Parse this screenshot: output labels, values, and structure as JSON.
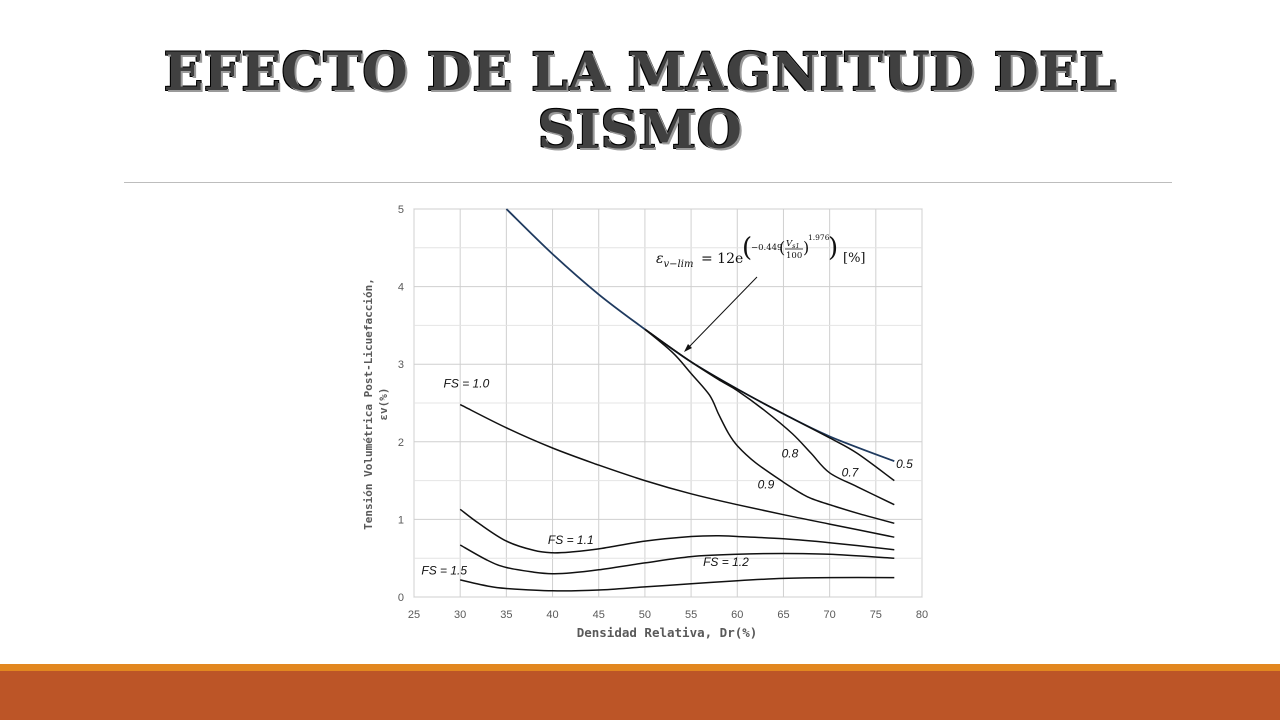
{
  "slide": {
    "title_line1": "EFECTO DE LA MAGNITUD DEL",
    "title_line2": "SISMO"
  },
  "colors": {
    "footer_bar": "#bc5527",
    "footer_line": "#e2871f",
    "title": "#404040",
    "limit_curve": "#1f3a5f"
  },
  "chart_data": {
    "type": "line",
    "xlabel": "Densidad Relativa, Dr(%)",
    "ylabel_line1": "Tensión Volumétrica Post-Licuefacción,",
    "ylabel_line2": "εv(%)",
    "xlim": [
      25,
      80
    ],
    "ylim": [
      0,
      5
    ],
    "xticks": [
      25,
      30,
      35,
      40,
      45,
      50,
      55,
      60,
      65,
      70,
      75,
      80
    ],
    "yticks": [
      0,
      1,
      2,
      3,
      4,
      5
    ],
    "grid": true,
    "equation": {
      "lhs": "ε",
      "lhs_sub": "v−lim",
      "rhs_prefix": "= 12e",
      "exp_coef": "−0.449",
      "frac_num": "V",
      "frac_num_sub": "s1",
      "frac_den": "100",
      "power": "1.976",
      "units": "[%]"
    },
    "series": [
      {
        "name": "ε v−lim",
        "x": [
          35,
          40,
          45,
          50,
          55,
          60,
          65,
          70,
          77
        ],
        "y": [
          5.0,
          4.42,
          3.9,
          3.45,
          3.03,
          2.68,
          2.36,
          2.07,
          1.75
        ]
      },
      {
        "name": "0.5",
        "x": [
          50,
          55,
          60,
          65,
          70,
          73,
          77
        ],
        "y": [
          3.45,
          3.03,
          2.68,
          2.36,
          2.05,
          1.85,
          1.5
        ]
      },
      {
        "name": "0.7",
        "x": [
          50,
          55,
          58,
          60,
          63,
          66,
          68,
          70,
          73,
          77
        ],
        "y": [
          3.45,
          3.03,
          2.8,
          2.66,
          2.4,
          2.1,
          1.85,
          1.6,
          1.42,
          1.19
        ]
      },
      {
        "name": "0.8",
        "x": [
          50,
          53,
          55,
          57,
          58,
          59,
          60,
          62,
          65,
          67,
          68,
          70,
          73,
          77
        ],
        "y": [
          3.45,
          3.15,
          2.88,
          2.6,
          2.35,
          2.12,
          1.95,
          1.73,
          1.48,
          1.33,
          1.27,
          1.19,
          1.08,
          0.95
        ]
      },
      {
        "name": "1.0",
        "x": [
          30,
          35,
          40,
          45,
          50,
          55,
          60,
          65,
          70,
          77
        ],
        "y": [
          2.48,
          2.18,
          1.92,
          1.7,
          1.5,
          1.33,
          1.19,
          1.06,
          0.94,
          0.77
        ]
      },
      {
        "name": "1.1",
        "x": [
          30,
          32,
          35,
          38,
          40,
          42,
          45,
          50,
          55,
          58,
          60,
          65,
          70,
          77
        ],
        "y": [
          1.13,
          0.95,
          0.72,
          0.6,
          0.57,
          0.58,
          0.62,
          0.72,
          0.78,
          0.79,
          0.78,
          0.75,
          0.7,
          0.61
        ]
      },
      {
        "name": "1.2",
        "x": [
          30,
          33,
          35,
          38,
          40,
          42,
          45,
          50,
          55,
          60,
          65,
          70,
          77
        ],
        "y": [
          0.67,
          0.47,
          0.38,
          0.32,
          0.3,
          0.31,
          0.35,
          0.44,
          0.52,
          0.55,
          0.56,
          0.55,
          0.5
        ]
      },
      {
        "name": "1.5",
        "x": [
          30,
          33,
          35,
          40,
          45,
          50,
          55,
          60,
          65,
          70,
          77
        ],
        "y": [
          0.22,
          0.14,
          0.11,
          0.08,
          0.09,
          0.13,
          0.17,
          0.21,
          0.24,
          0.25,
          0.25
        ]
      }
    ],
    "annotations": [
      {
        "text": "FS = 1.0",
        "x": 28.2,
        "y": 2.7
      },
      {
        "text": "FS = 1.1",
        "x": 39.5,
        "y": 0.68
      },
      {
        "text": "FS = 1.2",
        "x": 56.3,
        "y": 0.4
      },
      {
        "text": "FS = 1.5",
        "x": 25.8,
        "y": 0.29
      },
      {
        "text": "0.5",
        "x": 77.2,
        "y": 1.66
      },
      {
        "text": "0.7",
        "x": 71.3,
        "y": 1.55
      },
      {
        "text": "0.8",
        "x": 64.8,
        "y": 1.8
      },
      {
        "text": "0.9",
        "x": 62.2,
        "y": 1.4
      }
    ]
  }
}
